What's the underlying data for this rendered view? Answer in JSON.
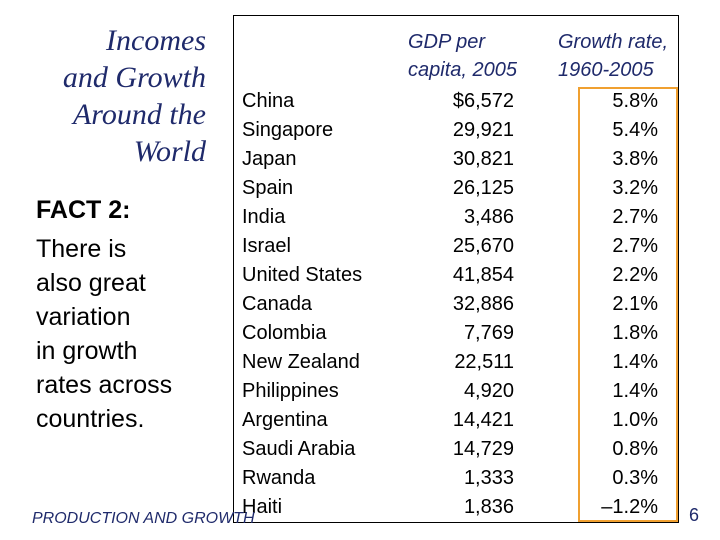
{
  "slide": {
    "title_lines": [
      "Incomes",
      "and Growth",
      "Around the",
      "World"
    ],
    "fact_heading": "FACT 2:",
    "fact_lines": [
      "There is",
      "also great",
      "variation",
      "in growth",
      "rates across",
      "countries."
    ],
    "footer": "PRODUCTION AND GROWTH",
    "page_number": "6"
  },
  "table": {
    "header_gdp": [
      "GDP per",
      "capita, 2005"
    ],
    "header_growth": [
      "Growth rate,",
      "1960-2005"
    ],
    "rows": [
      {
        "country": "China",
        "gdp": "$6,572",
        "growth": "5.8%"
      },
      {
        "country": "Singapore",
        "gdp": "29,921",
        "growth": "5.4%"
      },
      {
        "country": "Japan",
        "gdp": "30,821",
        "growth": "3.8%"
      },
      {
        "country": "Spain",
        "gdp": "26,125",
        "growth": "3.2%"
      },
      {
        "country": "India",
        "gdp": "3,486",
        "growth": "2.7%"
      },
      {
        "country": "Israel",
        "gdp": "25,670",
        "growth": "2.7%"
      },
      {
        "country": "United States",
        "gdp": "41,854",
        "growth": "2.2%"
      },
      {
        "country": "Canada",
        "gdp": "32,886",
        "growth": "2.1%"
      },
      {
        "country": "Colombia",
        "gdp": "7,769",
        "growth": "1.8%"
      },
      {
        "country": "New Zealand",
        "gdp": "22,511",
        "growth": "1.4%"
      },
      {
        "country": "Philippines",
        "gdp": "4,920",
        "growth": "1.4%"
      },
      {
        "country": "Argentina",
        "gdp": "14,421",
        "growth": "1.0%"
      },
      {
        "country": "Saudi Arabia",
        "gdp": "14,729",
        "growth": "0.8%"
      },
      {
        "country": "Rwanda",
        "gdp": "1,333",
        "growth": "0.3%"
      },
      {
        "country": "Haiti",
        "gdp": "1,836",
        "growth": "–1.2%"
      }
    ]
  },
  "colors": {
    "title": "#1f2a6b",
    "highlight_border": "#f0a030"
  }
}
